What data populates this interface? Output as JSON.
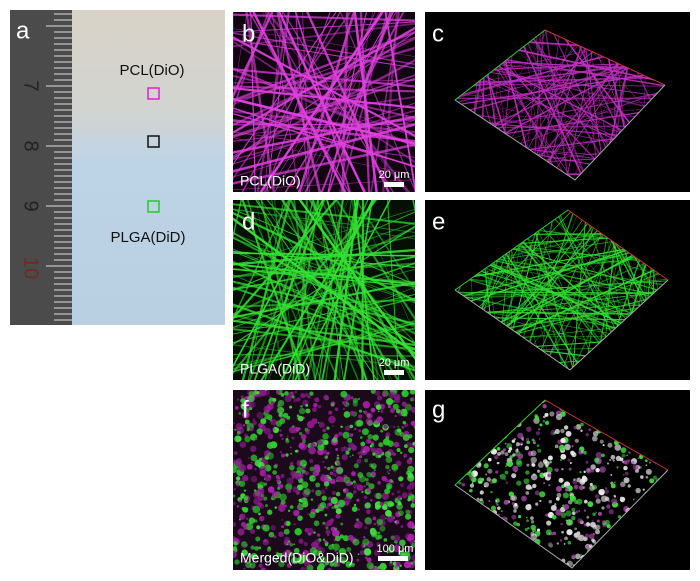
{
  "panels": [
    {
      "label": "a",
      "top_text": "PCL(DiO)",
      "bottom_text": "PLGA(DiD)",
      "ruler": [
        "7",
        "8",
        "9",
        "10"
      ]
    },
    {
      "label": "b",
      "caption": "PCL(DiO)",
      "scale": "20 μm"
    },
    {
      "label": "c"
    },
    {
      "label": "d",
      "caption": "PLGA(DiD)",
      "scale": "20 μm"
    },
    {
      "label": "e"
    },
    {
      "label": "f",
      "caption": "Merged(DiO&DiD)",
      "scale": "100 μm"
    },
    {
      "label": "g"
    }
  ]
}
